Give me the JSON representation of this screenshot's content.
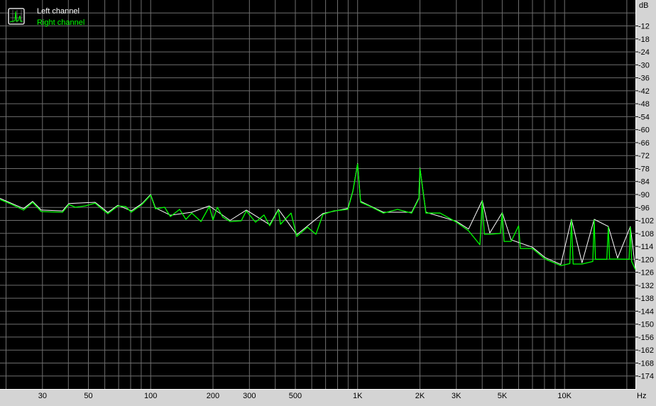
{
  "chart_data": {
    "type": "line",
    "title": "",
    "xlabel": "Hz",
    "ylabel": "dB",
    "x_scale": "log",
    "xlim": [
      18.7,
      22000
    ],
    "ylim": [
      -180,
      0
    ],
    "grid": true,
    "legend_placement": "top-left",
    "x_tick_labels": [
      {
        "value": 30,
        "label": "30"
      },
      {
        "value": 50,
        "label": "50"
      },
      {
        "value": 100,
        "label": "100"
      },
      {
        "value": 200,
        "label": "200"
      },
      {
        "value": 300,
        "label": "300"
      },
      {
        "value": 500,
        "label": "500"
      },
      {
        "value": 1000,
        "label": "1K"
      },
      {
        "value": 2000,
        "label": "2K"
      },
      {
        "value": 3000,
        "label": "3K"
      },
      {
        "value": 5000,
        "label": "5K"
      },
      {
        "value": 10000,
        "label": "10K"
      }
    ],
    "x_grid_values": [
      20,
      30,
      40,
      50,
      60,
      70,
      80,
      90,
      100,
      200,
      300,
      400,
      500,
      600,
      700,
      800,
      900,
      1000,
      2000,
      3000,
      4000,
      5000,
      6000,
      7000,
      8000,
      9000,
      10000,
      20000
    ],
    "y_ticks": [
      -12,
      -18,
      -24,
      -30,
      -36,
      -42,
      -48,
      -54,
      -60,
      -66,
      -72,
      -78,
      -84,
      -90,
      -96,
      -102,
      -108,
      -114,
      -120,
      -126,
      -132,
      -138,
      -144,
      -150,
      -156,
      -162,
      -168,
      -174
    ],
    "y_grid_values": [
      -6,
      -12,
      -18,
      -24,
      -30,
      -36,
      -42,
      -48,
      -54,
      -60,
      -66,
      -72,
      -78,
      -84,
      -90,
      -96,
      -102,
      -108,
      -114,
      -120,
      -126,
      -132,
      -138,
      -144,
      -150,
      -156,
      -162,
      -168,
      -174
    ],
    "series": [
      {
        "name": "Left channel",
        "color": "#ffffff",
        "points": [
          [
            18.7,
            -91.8
          ],
          [
            24.3,
            -96.5
          ],
          [
            26.9,
            -93.2
          ],
          [
            29.6,
            -97.2
          ],
          [
            37.5,
            -97.6
          ],
          [
            40.2,
            -94.2
          ],
          [
            53.9,
            -93.6
          ],
          [
            62.1,
            -98.3
          ],
          [
            69.4,
            -95
          ],
          [
            80.6,
            -97.6
          ],
          [
            90.8,
            -94.2
          ],
          [
            100,
            -90
          ],
          [
            105.5,
            -96.2
          ],
          [
            124.5,
            -99.6
          ],
          [
            158,
            -98.2
          ],
          [
            192,
            -95.3
          ],
          [
            242,
            -102
          ],
          [
            290,
            -97.2
          ],
          [
            376,
            -104
          ],
          [
            414,
            -96.8
          ],
          [
            508,
            -108.6
          ],
          [
            680,
            -98.8
          ],
          [
            897,
            -96.4
          ],
          [
            948,
            -88.4
          ],
          [
            1000,
            -75.6
          ],
          [
            1034,
            -93.2
          ],
          [
            1331,
            -98.2
          ],
          [
            1826,
            -98.2
          ],
          [
            1976,
            -91.6
          ],
          [
            2000,
            -77.6
          ],
          [
            2138,
            -98.2
          ],
          [
            3002,
            -102.4
          ],
          [
            3436,
            -106
          ],
          [
            4000,
            -92.8
          ],
          [
            4353,
            -107.8
          ],
          [
            5000,
            -98.4
          ],
          [
            5518,
            -111
          ],
          [
            6993,
            -114.4
          ],
          [
            8063,
            -119.2
          ],
          [
            9593,
            -122.4
          ],
          [
            10800,
            -101.5
          ],
          [
            12150,
            -121.6
          ],
          [
            13900,
            -101.5
          ],
          [
            16280,
            -104.8
          ],
          [
            18050,
            -119.4
          ],
          [
            20800,
            -104.8
          ],
          [
            22000,
            -124.2
          ]
        ]
      },
      {
        "name": "Right channel",
        "color": "#00ff00",
        "points": [
          [
            18.7,
            -92.3
          ],
          [
            21,
            -94.3
          ],
          [
            24.3,
            -97.2
          ],
          [
            26.9,
            -93.6
          ],
          [
            29.6,
            -97.9
          ],
          [
            37.5,
            -98.2
          ],
          [
            40.2,
            -94.6
          ],
          [
            43.2,
            -95.9
          ],
          [
            48.3,
            -95.3
          ],
          [
            53.9,
            -94
          ],
          [
            57.4,
            -96.3
          ],
          [
            62.1,
            -98.9
          ],
          [
            69.4,
            -95.3
          ],
          [
            75.7,
            -95.6
          ],
          [
            80.6,
            -98.2
          ],
          [
            90.8,
            -94.6
          ],
          [
            100,
            -90.3
          ],
          [
            105.5,
            -96.6
          ],
          [
            116.8,
            -95.9
          ],
          [
            124.5,
            -100.2
          ],
          [
            138,
            -96.9
          ],
          [
            148,
            -101.5
          ],
          [
            158,
            -98.6
          ],
          [
            175,
            -102.5
          ],
          [
            192,
            -95.6
          ],
          [
            200,
            -101.8
          ],
          [
            210,
            -95.9
          ],
          [
            223,
            -100.5
          ],
          [
            242,
            -102.5
          ],
          [
            274,
            -102.2
          ],
          [
            290,
            -97.6
          ],
          [
            321,
            -102.8
          ],
          [
            353,
            -99.5
          ],
          [
            376,
            -104.5
          ],
          [
            414,
            -97.2
          ],
          [
            424,
            -103.8
          ],
          [
            477,
            -98.6
          ],
          [
            508,
            -109.4
          ],
          [
            572,
            -105.1
          ],
          [
            629,
            -108.4
          ],
          [
            680,
            -99.2
          ],
          [
            766,
            -97.6
          ],
          [
            897,
            -96.9
          ],
          [
            948,
            -88.7
          ],
          [
            1000,
            -75.9
          ],
          [
            1034,
            -93.6
          ],
          [
            1137,
            -95.3
          ],
          [
            1331,
            -98.6
          ],
          [
            1560,
            -96.9
          ],
          [
            1826,
            -98.6
          ],
          [
            1976,
            -92
          ],
          [
            2000,
            -77.9
          ],
          [
            2138,
            -98.6
          ],
          [
            2504,
            -98.6
          ],
          [
            3002,
            -102.8
          ],
          [
            3436,
            -106.8
          ],
          [
            3900,
            -113.3
          ],
          [
            4000,
            -93
          ],
          [
            4100,
            -108.4
          ],
          [
            4353,
            -108.4
          ],
          [
            4900,
            -108
          ],
          [
            5000,
            -98.6
          ],
          [
            5100,
            -111.7
          ],
          [
            5518,
            -111.7
          ],
          [
            6000,
            -104.5
          ],
          [
            6114,
            -115
          ],
          [
            6993,
            -115
          ],
          [
            8063,
            -119.9
          ],
          [
            9593,
            -122.9
          ],
          [
            10600,
            -122
          ],
          [
            10800,
            -101.8
          ],
          [
            11000,
            -122.2
          ],
          [
            12150,
            -122.2
          ],
          [
            13700,
            -121
          ],
          [
            13900,
            -101.8
          ],
          [
            14100,
            -120
          ],
          [
            16000,
            -120
          ],
          [
            16280,
            -105.1
          ],
          [
            16500,
            -119.9
          ],
          [
            18050,
            -119.9
          ],
          [
            20500,
            -120
          ],
          [
            20800,
            -105.1
          ],
          [
            21100,
            -121
          ],
          [
            22000,
            -124.8
          ]
        ]
      }
    ]
  },
  "legend": {
    "icon": "spectrum-chart-icon",
    "left_label": "Left channel",
    "right_label": "Right channel"
  },
  "axis": {
    "y_unit": "dB",
    "x_unit": "Hz"
  }
}
